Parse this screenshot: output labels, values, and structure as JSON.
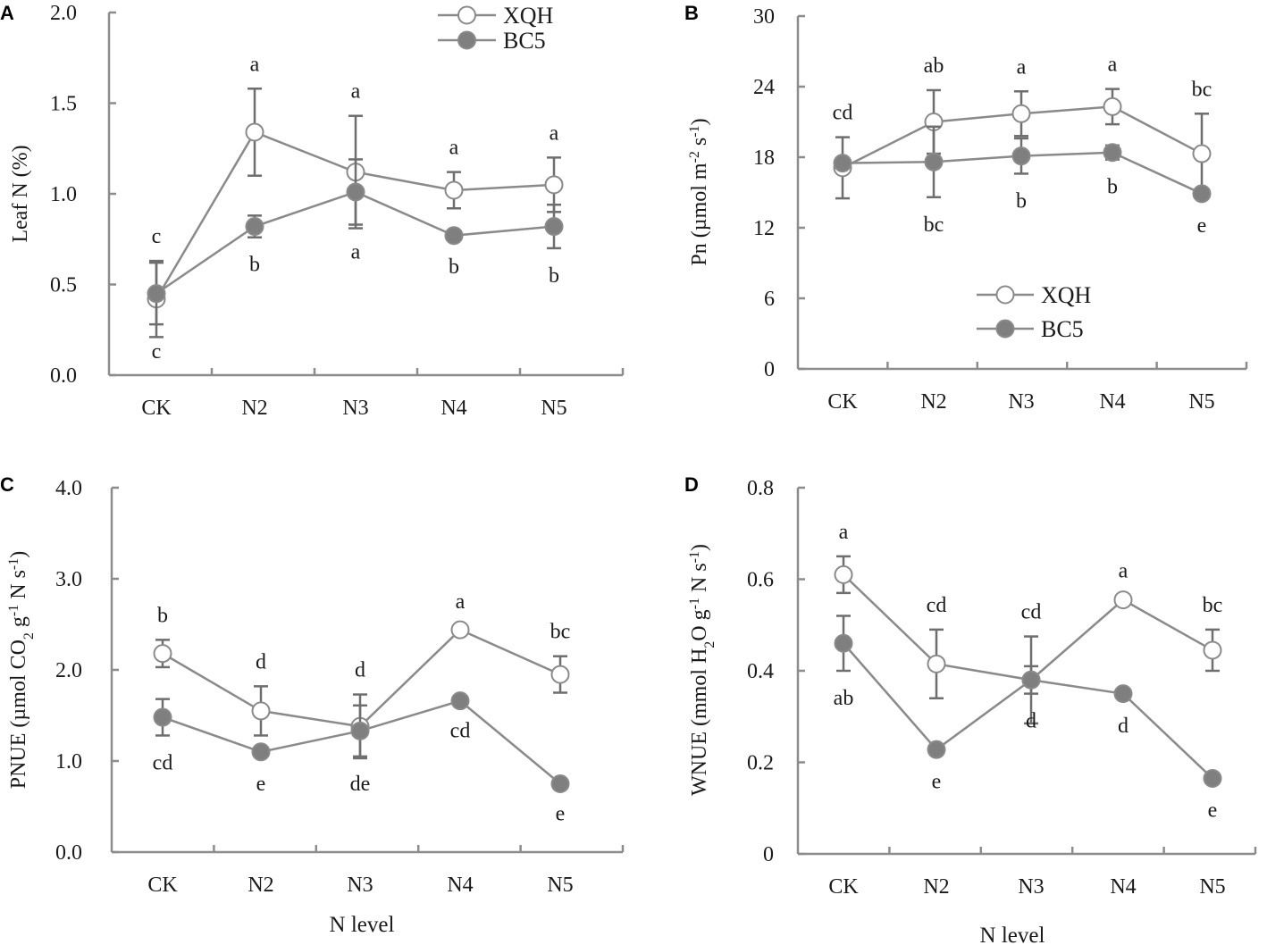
{
  "colors": {
    "axis": "#8c8c8c",
    "line": "#8a8a8a",
    "filled_marker": "#7f7f7f",
    "open_marker": "#ffffff",
    "errorbar": "#6e6e6e"
  },
  "chart_data": [
    {
      "panel": "A",
      "type": "line",
      "categories": [
        "CK",
        "N2",
        "N3",
        "N4",
        "N5"
      ],
      "ylabel": [
        {
          "t": "Leaf N (%)"
        }
      ],
      "xlabel": "",
      "ylim": [
        0,
        2.0
      ],
      "yticks": [
        "0.0",
        "0.5",
        "1.0",
        "1.5",
        "2.0"
      ],
      "ytick_values": [
        0,
        0.5,
        1.0,
        1.5,
        2.0
      ],
      "legend": {
        "placement": "top-right",
        "entries": [
          "XQH",
          "BC5"
        ]
      },
      "series": [
        {
          "name": "XQH",
          "marker": "open",
          "values": [
            0.42,
            1.34,
            1.12,
            1.02,
            1.05
          ],
          "errors": [
            0.21,
            0.24,
            0.31,
            0.1,
            0.15
          ],
          "letters": [
            "c",
            "a",
            "a",
            "a",
            "a"
          ]
        },
        {
          "name": "BC5",
          "marker": "filled",
          "values": [
            0.45,
            0.82,
            1.01,
            0.77,
            0.82
          ],
          "errors": [
            0.17,
            0.06,
            0.18,
            0.02,
            0.12
          ],
          "letters": [
            "c",
            "b",
            "a",
            "b",
            "b"
          ]
        }
      ]
    },
    {
      "panel": "B",
      "type": "line",
      "categories": [
        "CK",
        "N2",
        "N3",
        "N4",
        "N5"
      ],
      "ylabel": [
        {
          "t": "Pn (µmol m"
        },
        {
          "t": "-2",
          "sup": true
        },
        {
          "t": " s"
        },
        {
          "t": "-1",
          "sup": true
        },
        {
          "t": ")"
        }
      ],
      "xlabel": "",
      "ylim": [
        0,
        30
      ],
      "yticks": [
        "0",
        "6",
        "12",
        "18",
        "24",
        "30"
      ],
      "ytick_values": [
        0,
        6,
        12,
        18,
        24,
        30
      ],
      "legend": {
        "placement": "center-bottom",
        "entries": [
          "XQH",
          "BC5"
        ]
      },
      "series": [
        {
          "name": "XQH",
          "marker": "open",
          "values": [
            17.1,
            21.0,
            21.7,
            22.3,
            18.3
          ],
          "errors": [
            2.6,
            2.7,
            1.9,
            1.5,
            3.4
          ],
          "letters": [
            "cd",
            "ab",
            "a",
            "a",
            "bc"
          ]
        },
        {
          "name": "BC5",
          "marker": "filled",
          "values": [
            17.5,
            17.6,
            18.1,
            18.4,
            14.9
          ],
          "errors": [
            0.3,
            3.0,
            1.5,
            0.6,
            0.4
          ],
          "letters": [
            "",
            "bc",
            "b",
            "b",
            "e"
          ]
        }
      ]
    },
    {
      "panel": "C",
      "type": "line",
      "categories": [
        "CK",
        "N2",
        "N3",
        "N4",
        "N5"
      ],
      "ylabel": [
        {
          "t": "PNUE (µmol CO"
        },
        {
          "t": "2",
          "sub": true
        },
        {
          "t": " g"
        },
        {
          "t": "-1",
          "sup": true
        },
        {
          "t": " N s"
        },
        {
          "t": "-1",
          "sup": true
        },
        {
          "t": ")"
        }
      ],
      "xlabel": "N level",
      "ylim": [
        0,
        4.0
      ],
      "yticks": [
        "0.0",
        "1.0",
        "2.0",
        "3.0",
        "4.0"
      ],
      "ytick_values": [
        0,
        1,
        2,
        3,
        4
      ],
      "series": [
        {
          "name": "XQH",
          "marker": "open",
          "values": [
            2.18,
            1.55,
            1.38,
            2.44,
            1.95
          ],
          "errors": [
            0.15,
            0.27,
            0.35,
            0.04,
            0.2
          ],
          "letters": [
            "b",
            "d",
            "d",
            "a",
            "bc"
          ]
        },
        {
          "name": "BC5",
          "marker": "filled",
          "values": [
            1.48,
            1.1,
            1.33,
            1.66,
            0.75
          ],
          "errors": [
            0.2,
            0.05,
            0.28,
            0.03,
            0.03
          ],
          "letters": [
            "cd",
            "e",
            "de",
            "cd",
            "e"
          ]
        }
      ]
    },
    {
      "panel": "D",
      "type": "line",
      "categories": [
        "CK",
        "N2",
        "N3",
        "N4",
        "N5"
      ],
      "ylabel": [
        {
          "t": "WNUE (mmol H"
        },
        {
          "t": "2",
          "sub": true
        },
        {
          "t": "O g"
        },
        {
          "t": "-1",
          "sup": true
        },
        {
          "t": " N s"
        },
        {
          "t": "-1",
          "sup": true
        },
        {
          "t": ")"
        }
      ],
      "xlabel": "N level",
      "ylim": [
        0,
        0.8
      ],
      "yticks": [
        "0",
        "0.2",
        "0.4",
        "0.6",
        "0.8"
      ],
      "ytick_values": [
        0,
        0.2,
        0.4,
        0.6,
        0.8
      ],
      "series": [
        {
          "name": "XQH",
          "marker": "open",
          "values": [
            0.61,
            0.415,
            0.38,
            0.555,
            0.445
          ],
          "errors": [
            0.04,
            0.075,
            0.095,
            0.01,
            0.045
          ],
          "letters": [
            "a",
            "cd",
            "cd",
            "a",
            "bc"
          ]
        },
        {
          "name": "BC5",
          "marker": "filled",
          "values": [
            0.46,
            0.228,
            0.38,
            0.35,
            0.165
          ],
          "errors": [
            0.06,
            0.01,
            0.03,
            0.01,
            0.01
          ],
          "letters": [
            "ab",
            "e",
            "d",
            "d",
            "e"
          ]
        }
      ]
    }
  ]
}
